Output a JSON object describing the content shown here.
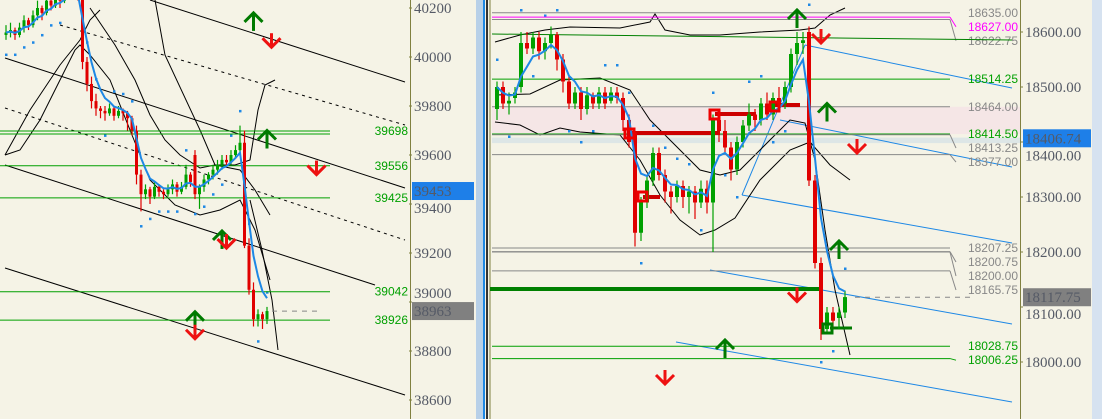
{
  "colors": {
    "up": "#00a000",
    "down": "#e00000",
    "ma": "#1e88e5",
    "bid_box": "#1e7fe8",
    "last_box": "#808080",
    "level_green": "#00a000",
    "level_gray": "#888888",
    "magenta": "#ff00ff",
    "arrow_up": "#007a00",
    "arrow_down": "#ee1111"
  },
  "chart_data": [
    {
      "type": "candlestick",
      "panel": "left",
      "yticks": [
        "40200",
        "40000",
        "39800",
        "39600",
        "39400",
        "39200",
        "39000",
        "38800",
        "38600"
      ],
      "ylim": [
        38580,
        40230
      ],
      "bid_label": "39453",
      "bid": 39453,
      "last_label": "38963",
      "last": 38963,
      "levels": [
        {
          "price": 39698,
          "label": "39698",
          "color": "green",
          "double": true
        },
        {
          "price": 39556,
          "label": "39556",
          "color": "green"
        },
        {
          "price": 39425,
          "label": "39425",
          "color": "green"
        },
        {
          "price": 39042,
          "label": "39042",
          "color": "green"
        },
        {
          "price": 38926,
          "label": "38926",
          "color": "green"
        }
      ],
      "ohlc": [
        [
          40090,
          40130,
          40070,
          40100
        ],
        [
          40100,
          40140,
          40080,
          40110
        ],
        [
          40110,
          40120,
          40070,
          40090
        ],
        [
          40090,
          40140,
          40080,
          40120
        ],
        [
          40120,
          40170,
          40100,
          40150
        ],
        [
          40150,
          40160,
          40110,
          40130
        ],
        [
          40130,
          40190,
          40120,
          40170
        ],
        [
          40170,
          40230,
          40150,
          40200
        ],
        [
          40200,
          40210,
          40150,
          40180
        ],
        [
          40180,
          40260,
          40170,
          40230
        ],
        [
          40230,
          40240,
          40190,
          40210
        ],
        [
          40210,
          40280,
          40200,
          40250
        ],
        [
          40250,
          40260,
          40200,
          40230
        ],
        [
          40230,
          40290,
          40220,
          40260
        ],
        [
          40260,
          40300,
          40240,
          40280
        ],
        [
          40280,
          40290,
          40240,
          40260
        ],
        [
          40260,
          40280,
          40230,
          40250
        ],
        [
          40250,
          40260,
          39950,
          39980
        ],
        [
          39980,
          40000,
          39860,
          39890
        ],
        [
          39890,
          39920,
          39790,
          39820
        ],
        [
          39820,
          39850,
          39760,
          39790
        ],
        [
          39790,
          39800,
          39750,
          39780
        ],
        [
          39780,
          39800,
          39740,
          39770
        ],
        [
          39770,
          39810,
          39760,
          39790
        ],
        [
          39790,
          39800,
          39740,
          39760
        ],
        [
          39760,
          39800,
          39750,
          39780
        ],
        [
          39780,
          39790,
          39740,
          39770
        ],
        [
          39770,
          39780,
          39700,
          39750
        ],
        [
          39750,
          39760,
          39680,
          39700
        ],
        [
          39700,
          39720,
          39480,
          39520
        ],
        [
          39520,
          39540,
          39370,
          39440
        ],
        [
          39440,
          39480,
          39420,
          39460
        ],
        [
          39460,
          39470,
          39400,
          39430
        ],
        [
          39430,
          39490,
          39420,
          39470
        ],
        [
          39470,
          39480,
          39430,
          39450
        ],
        [
          39450,
          39460,
          39420,
          39440
        ],
        [
          39440,
          39480,
          39430,
          39460
        ],
        [
          39460,
          39500,
          39440,
          39480
        ],
        [
          39480,
          39490,
          39430,
          39450
        ],
        [
          39450,
          39490,
          39440,
          39470
        ],
        [
          39470,
          39560,
          39460,
          39520
        ],
        [
          39520,
          39530,
          39470,
          39490
        ],
        [
          39600,
          39620,
          39420,
          39440
        ],
        [
          39440,
          39480,
          39380,
          39470
        ],
        [
          39470,
          39520,
          39450,
          39500
        ],
        [
          39500,
          39530,
          39480,
          39520
        ],
        [
          39520,
          39560,
          39500,
          39540
        ],
        [
          39540,
          39580,
          39520,
          39560
        ],
        [
          39560,
          39600,
          39540,
          39580
        ],
        [
          39580,
          39600,
          39550,
          39570
        ],
        [
          39570,
          39620,
          39560,
          39600
        ],
        [
          39600,
          39640,
          39590,
          39620
        ],
        [
          39620,
          39720,
          39610,
          39650
        ],
        [
          39650,
          39700,
          39220,
          39230
        ],
        [
          39230,
          39260,
          39030,
          39050
        ],
        [
          39050,
          39080,
          38900,
          38930
        ],
        [
          38930,
          38970,
          38900,
          38950
        ],
        [
          38950,
          38960,
          38890,
          38930
        ],
        [
          38930,
          38980,
          38910,
          38963
        ]
      ],
      "arrows": [
        {
          "dir": "up",
          "i": 55,
          "price": 40180
        },
        {
          "dir": "down",
          "i": 59,
          "price": 40040
        },
        {
          "dir": "up",
          "i": 58,
          "price": 39700
        },
        {
          "dir": "down",
          "i": 69,
          "price": 39520
        },
        {
          "dir": "up",
          "i": 48,
          "price": 39290
        },
        {
          "dir": "down",
          "i": 49,
          "price": 39220
        },
        {
          "dir": "up",
          "i": 42,
          "price": 38960
        },
        {
          "dir": "down",
          "i": 42,
          "price": 38850
        }
      ]
    },
    {
      "type": "candlestick",
      "panel": "right",
      "yticks": [
        "18600.00",
        "18500.00",
        "18400.00",
        "18300.00",
        "18200.00",
        "18100.00",
        "18000.00"
      ],
      "ylim": [
        17920,
        18660
      ],
      "bid_label": "18406.74",
      "bid": 18406.74,
      "last_label": "18117.75",
      "last": 18117.75,
      "levels": [
        {
          "price": 18635.0,
          "label": "18635.00",
          "color": "gray"
        },
        {
          "price": 18627.0,
          "label": "18627.00",
          "color": "magenta"
        },
        {
          "price": 18622.75,
          "label": "18622.75",
          "color": "gray"
        },
        {
          "price": 18514.25,
          "label": "18514.25",
          "color": "green"
        },
        {
          "price": 18464.0,
          "label": "18464.00",
          "color": "gray"
        },
        {
          "price": 18414.5,
          "label": "18414.50",
          "color": "green"
        },
        {
          "price": 18413.25,
          "label": "18413.25",
          "color": "gray"
        },
        {
          "price": 18377.0,
          "label": "18377.00",
          "color": "gray"
        },
        {
          "price": 18207.25,
          "label": "18207.25",
          "color": "gray"
        },
        {
          "price": 18200.0,
          "label": "18200.00",
          "color": "gray"
        },
        {
          "price": 18200.75,
          "label": "18200.75",
          "color": "gray"
        },
        {
          "price": 18165.75,
          "label": "18165.75",
          "color": "gray"
        },
        {
          "price": 18028.75,
          "label": "18028.75",
          "color": "green"
        },
        {
          "price": 18006.25,
          "label": "18006.25",
          "color": "green"
        }
      ],
      "zones": [
        {
          "from": 18414.5,
          "to": 18464.0,
          "color": "#f5e6e6"
        },
        {
          "from": 18398,
          "to": 18408,
          "color": "#dde6e6"
        }
      ],
      "ohlc": [
        [
          18460,
          18510,
          18440,
          18500
        ],
        [
          18500,
          18510,
          18460,
          18470
        ],
        [
          18470,
          18490,
          18450,
          18475
        ],
        [
          18480,
          18500,
          18470,
          18490
        ],
        [
          18500,
          18600,
          18490,
          18580
        ],
        [
          18580,
          18600,
          18560,
          18570
        ],
        [
          18570,
          18600,
          18560,
          18590
        ],
        [
          18590,
          18600,
          18550,
          18565
        ],
        [
          18565,
          18590,
          18550,
          18580
        ],
        [
          18580,
          18610,
          18570,
          18595
        ],
        [
          18595,
          18600,
          18530,
          18550
        ],
        [
          18550,
          18560,
          18490,
          18510
        ],
        [
          18510,
          18520,
          18460,
          18470
        ],
        [
          18470,
          18500,
          18460,
          18490
        ],
        [
          18490,
          18500,
          18440,
          18460
        ],
        [
          18460,
          18500,
          18450,
          18485
        ],
        [
          18485,
          18490,
          18460,
          18470
        ],
        [
          18470,
          18500,
          18460,
          18490
        ],
        [
          18490,
          18500,
          18460,
          18470
        ],
        [
          18475,
          18500,
          18470,
          18490
        ],
        [
          18490,
          18500,
          18470,
          18480
        ],
        [
          18480,
          18490,
          18420,
          18440
        ],
        [
          18440,
          18450,
          18390,
          18400
        ],
        [
          18417,
          18420,
          18210,
          18235
        ],
        [
          18235,
          18300,
          18220,
          18290
        ],
        [
          18290,
          18340,
          18280,
          18330
        ],
        [
          18330,
          18390,
          18320,
          18380
        ],
        [
          18380,
          18390,
          18330,
          18340
        ],
        [
          18340,
          18350,
          18290,
          18310
        ],
        [
          18310,
          18320,
          18270,
          18300
        ],
        [
          18300,
          18330,
          18290,
          18320
        ],
        [
          18320,
          18330,
          18280,
          18300
        ],
        [
          18300,
          18320,
          18270,
          18310
        ],
        [
          18310,
          18320,
          18260,
          18290
        ],
        [
          18290,
          18330,
          18280,
          18315
        ],
        [
          18315,
          18330,
          18270,
          18290
        ],
        [
          18290,
          18450,
          18200,
          18440
        ],
        [
          18440,
          18460,
          18400,
          18420
        ],
        [
          18420,
          18440,
          18380,
          18390
        ],
        [
          18390,
          18400,
          18330,
          18350
        ],
        [
          18350,
          18410,
          18340,
          18400
        ],
        [
          18400,
          18440,
          18390,
          18430
        ],
        [
          18430,
          18470,
          18420,
          18450
        ],
        [
          18450,
          18460,
          18420,
          18440
        ],
        [
          18440,
          18480,
          18430,
          18470
        ],
        [
          18470,
          18490,
          18440,
          18450
        ],
        [
          18450,
          18490,
          18440,
          18480
        ],
        [
          18480,
          18500,
          18460,
          18470
        ],
        [
          18470,
          18510,
          18460,
          18500
        ],
        [
          18500,
          18570,
          18490,
          18560
        ],
        [
          18560,
          18600,
          18540,
          18580
        ],
        [
          18580,
          18600,
          18560,
          18585
        ],
        [
          18600,
          18610,
          18320,
          18330
        ],
        [
          18330,
          18340,
          18170,
          18180
        ],
        [
          18180,
          18190,
          18040,
          18060
        ],
        [
          18060,
          18100,
          18050,
          18090
        ],
        [
          18090,
          18100,
          18060,
          18075
        ],
        [
          18080,
          18100,
          18060,
          18090
        ],
        [
          18090,
          18130,
          18080,
          18118
        ]
      ],
      "arrows": [
        {
          "dir": "up",
          "i": 50,
          "price": 18640
        },
        {
          "dir": "down",
          "i": 54,
          "price": 18580
        },
        {
          "dir": "up",
          "i": 55,
          "price": 18470
        },
        {
          "dir": "down",
          "i": 60,
          "price": 18380
        },
        {
          "dir": "up",
          "i": 57,
          "price": 18220
        },
        {
          "dir": "down",
          "i": 50,
          "price": 18110
        },
        {
          "dir": "up",
          "i": 38,
          "price": 18040
        },
        {
          "dir": "down",
          "i": 28,
          "price": 17960
        }
      ]
    }
  ]
}
